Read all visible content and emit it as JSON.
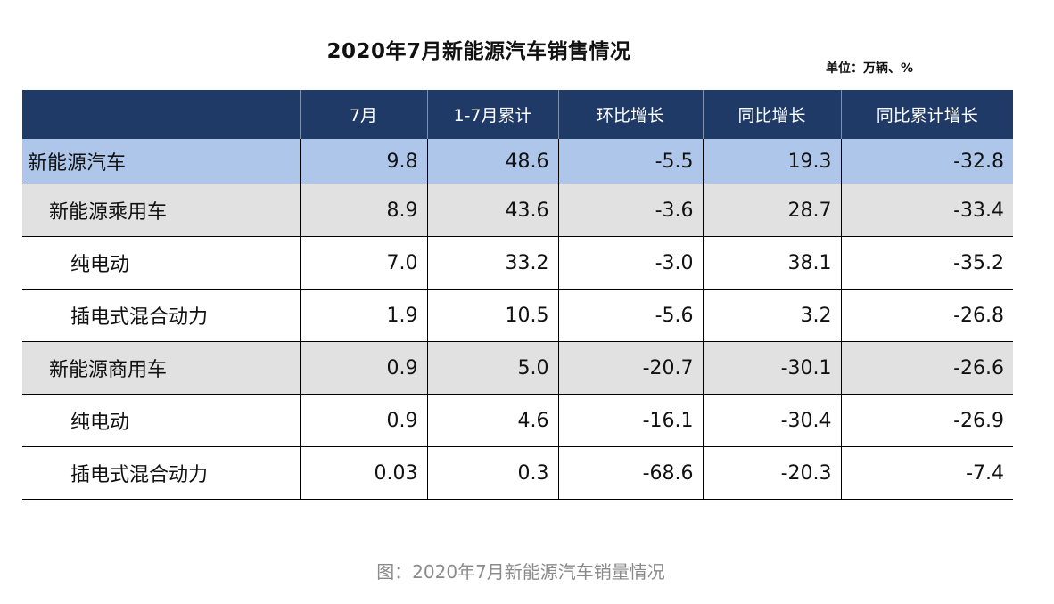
{
  "title": "2020年7月新能源汽车销售情况",
  "unit": "单位：万辆、%",
  "table": {
    "headers": [
      "",
      "7月",
      "1-7月累计",
      "环比增长",
      "同比增长",
      "同比累计增长"
    ],
    "rows": [
      {
        "level": 0,
        "cells": [
          "新能源汽车",
          "9.8",
          "48.6",
          "-5.5",
          "19.3",
          "-32.8"
        ]
      },
      {
        "level": 1,
        "cells": [
          "新能源乘用车",
          "8.9",
          "43.6",
          "-3.6",
          "28.7",
          "-33.4"
        ]
      },
      {
        "level": 2,
        "cells": [
          "纯电动",
          "7.0",
          "33.2",
          "-3.0",
          "38.1",
          "-35.2"
        ]
      },
      {
        "level": 2,
        "cells": [
          "插电式混合动力",
          "1.9",
          "10.5",
          "-5.6",
          "3.2",
          "-26.8"
        ]
      },
      {
        "level": 1,
        "cells": [
          "新能源商用车",
          "0.9",
          "5.0",
          "-20.7",
          "-30.1",
          "-26.6"
        ]
      },
      {
        "level": 2,
        "cells": [
          "纯电动",
          "0.9",
          "4.6",
          "-16.1",
          "-30.4",
          "-26.9"
        ]
      },
      {
        "level": 2,
        "cells": [
          "插电式混合动力",
          "0.03",
          "0.3",
          "-68.6",
          "-20.3",
          "-7.4"
        ]
      }
    ]
  },
  "caption": "图：2020年7月新能源汽车销量情况",
  "colors": {
    "header_bg": "#1f3a66",
    "total_row_bg": "#aec6ea",
    "subtotal_row_bg": "#e1e1e1",
    "caption_text": "#8a8a8a"
  }
}
